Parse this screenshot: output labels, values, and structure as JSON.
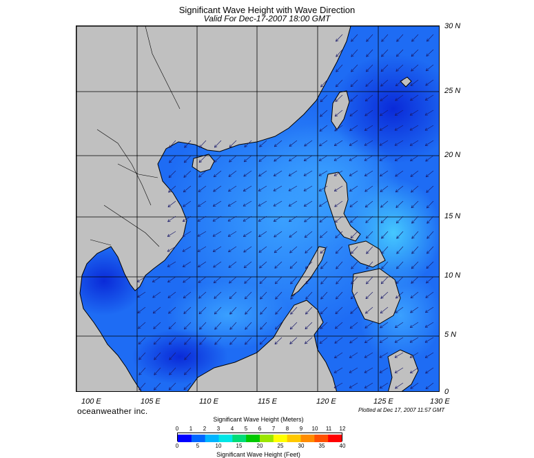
{
  "header": {
    "title": "Significant Wave Height with Wave Direction",
    "subtitle": "Valid For Dec-17-2007 18:00 GMT"
  },
  "map": {
    "lat_labels": [
      "30 N",
      "25 N",
      "20 N",
      "15 N",
      "10 N",
      "5 N",
      "0"
    ],
    "lon_labels": [
      "100 E",
      "105 E",
      "110 E",
      "115 E",
      "120 E",
      "125 E",
      "130 E"
    ],
    "land_color": "#c0c0c0",
    "sea_color": "#1a5cf0",
    "arrow_color": "#1a1a6a",
    "wave_direction": "southwest"
  },
  "footer": {
    "brand": "oceanweather inc.",
    "plotted": "Plotted at Dec 17, 2007 11:57 GMT"
  },
  "legend": {
    "title_meters": "Significant Wave Height (Meters)",
    "title_feet": "Significant Wave Height (Feet)",
    "meter_ticks": [
      "0",
      "1",
      "2",
      "3",
      "4",
      "5",
      "6",
      "7",
      "8",
      "9",
      "10",
      "11",
      "12"
    ],
    "feet_ticks": [
      "0",
      "5",
      "10",
      "15",
      "20",
      "25",
      "30",
      "35",
      "40"
    ],
    "colors": [
      "#0000ff",
      "#0066ff",
      "#00b4ff",
      "#00e6e6",
      "#00dc78",
      "#00c800",
      "#9be600",
      "#ffff00",
      "#ffc800",
      "#ff8c00",
      "#ff5000",
      "#ff0000"
    ]
  }
}
